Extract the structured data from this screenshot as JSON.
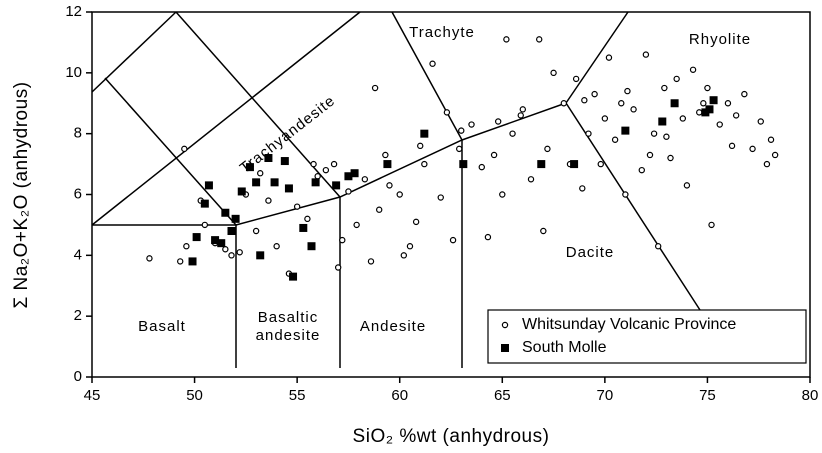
{
  "chart_data": {
    "type": "scatter",
    "xlabel": "SiO₂ %wt (anhydrous)",
    "ylabel": "Σ Na₂O+K₂O (anhydrous)",
    "xlim": [
      45,
      80
    ],
    "xticks": [
      45,
      50,
      55,
      60,
      65,
      70,
      75,
      80
    ],
    "ylim": [
      0,
      12
    ],
    "yticks": [
      0,
      2,
      4,
      6,
      8,
      10,
      12
    ],
    "annotations": [
      "Trachyte",
      "Rhyolite",
      "Trachyandesite",
      "Basalt",
      "Basaltic",
      "andesite",
      "Andesite",
      "Dacite"
    ],
    "legend": "lower right",
    "series": [
      {
        "name": "Whitsunday Volcanic Province",
        "marker": "open-circle",
        "color": "#000000",
        "x": [
          47.8,
          49.3,
          49.5,
          49.6,
          50.3,
          50.5,
          51.0,
          51.5,
          51.8,
          52.2,
          52.5,
          53.0,
          53.6,
          54.0,
          54.6,
          55.0,
          55.5,
          56.0,
          56.4,
          56.8,
          57.0,
          57.2,
          57.5,
          57.9,
          58.3,
          58.6,
          58.8,
          59.0,
          59.3,
          59.5,
          60.0,
          60.2,
          60.5,
          60.8,
          61.2,
          61.6,
          62.0,
          62.3,
          62.6,
          62.9,
          63.5,
          64.0,
          64.3,
          64.6,
          65.0,
          65.2,
          65.5,
          65.9,
          66.4,
          66.8,
          67.0,
          67.2,
          67.5,
          68.0,
          68.3,
          68.6,
          68.9,
          69.2,
          69.5,
          69.8,
          70.2,
          70.5,
          70.8,
          71.0,
          71.4,
          71.8,
          72.0,
          72.4,
          72.6,
          72.9,
          73.2,
          73.5,
          73.8,
          74.0,
          74.3,
          74.6,
          75.0,
          75.2,
          75.6,
          76.0,
          76.4,
          76.8,
          77.2,
          77.6,
          77.9,
          78.1,
          78.3,
          71.1,
          73.0,
          74.8,
          70.0,
          76.2,
          72.2,
          69.0,
          66.0,
          64.8,
          63.0,
          61.0,
          55.8,
          53.2
        ],
        "values": [
          3.9,
          3.8,
          7.5,
          4.3,
          5.8,
          5.0,
          4.4,
          4.2,
          4.0,
          4.1,
          6.0,
          4.8,
          5.8,
          4.3,
          3.4,
          5.6,
          5.2,
          6.6,
          6.8,
          7.0,
          3.6,
          4.5,
          6.1,
          5.0,
          6.5,
          3.8,
          9.5,
          5.5,
          7.3,
          6.3,
          6.0,
          4.0,
          4.3,
          5.1,
          7.0,
          10.3,
          5.9,
          8.7,
          4.5,
          7.5,
          8.3,
          6.9,
          4.6,
          7.3,
          6.0,
          11.1,
          8.0,
          8.6,
          6.5,
          11.1,
          4.8,
          7.5,
          10.0,
          9.0,
          7.0,
          9.8,
          6.2,
          8.0,
          9.3,
          7.0,
          10.5,
          7.8,
          9.0,
          6.0,
          8.8,
          6.8,
          10.6,
          8.0,
          4.3,
          9.5,
          7.2,
          9.8,
          8.5,
          6.3,
          10.1,
          8.7,
          9.5,
          5.0,
          8.3,
          9.0,
          8.6,
          9.3,
          7.5,
          8.4,
          7.0,
          7.8,
          7.3,
          9.4,
          7.9,
          9.0,
          8.5,
          7.6,
          7.3,
          9.1,
          8.8,
          8.4,
          8.1,
          7.6,
          7.0,
          6.7
        ]
      },
      {
        "name": "South Molle",
        "marker": "filled-square",
        "color": "#000000",
        "x": [
          49.9,
          50.1,
          50.5,
          50.7,
          51.0,
          51.3,
          51.5,
          51.8,
          52.0,
          52.3,
          52.7,
          53.0,
          53.2,
          53.6,
          53.9,
          54.4,
          54.6,
          54.8,
          55.3,
          55.7,
          55.9,
          56.9,
          57.5,
          57.8,
          59.4,
          61.2,
          63.1,
          66.9,
          68.5,
          71.0,
          72.8,
          73.4,
          74.9,
          75.3,
          75.1
        ],
        "values": [
          3.8,
          4.6,
          5.7,
          6.3,
          4.5,
          4.4,
          5.4,
          4.8,
          5.2,
          6.1,
          6.9,
          6.4,
          4.0,
          7.2,
          6.4,
          7.1,
          6.2,
          3.3,
          4.9,
          4.3,
          6.4,
          6.3,
          6.6,
          6.7,
          7.0,
          8.0,
          7.0,
          7.0,
          7.0,
          8.1,
          8.4,
          9.0,
          8.7,
          9.1,
          8.8
        ]
      }
    ]
  }
}
